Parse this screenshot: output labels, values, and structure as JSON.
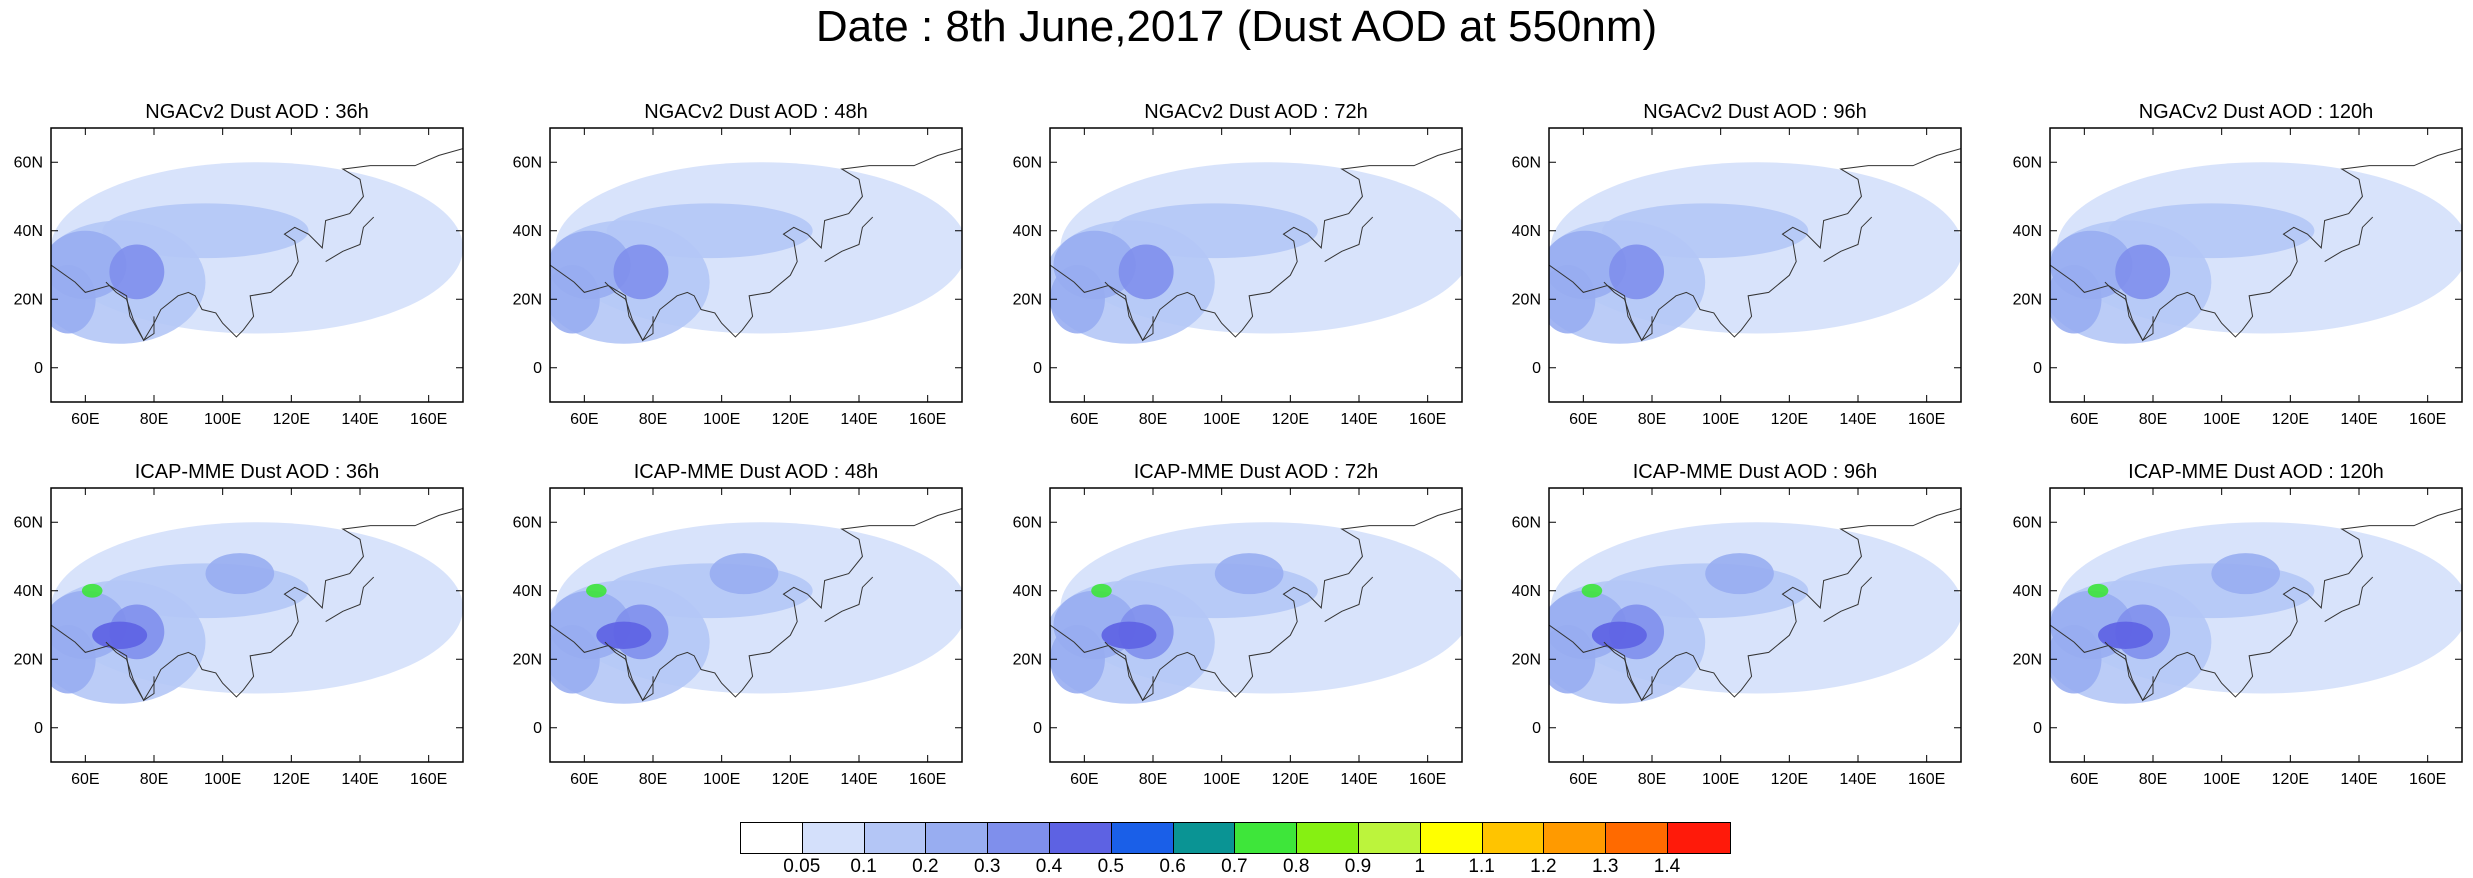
{
  "title": "Date : 8th June,2017 (Dust AOD at 550nm)",
  "rows": [
    {
      "model": "NGACv2",
      "panels": [
        {
          "title": "NGACv2 Dust AOD : 36h"
        },
        {
          "title": "NGACv2 Dust AOD : 48h"
        },
        {
          "title": "NGACv2 Dust AOD : 72h"
        },
        {
          "title": "NGACv2 Dust AOD : 96h"
        },
        {
          "title": "NGACv2 Dust AOD : 120h"
        }
      ]
    },
    {
      "model": "ICAP-MME",
      "panels": [
        {
          "title": "ICAP-MME Dust AOD : 36h"
        },
        {
          "title": "ICAP-MME Dust AOD : 48h"
        },
        {
          "title": "ICAP-MME Dust AOD : 72h"
        },
        {
          "title": "ICAP-MME Dust AOD : 96h"
        },
        {
          "title": "ICAP-MME Dust AOD : 120h"
        }
      ]
    }
  ],
  "map_extent": {
    "lon": [
      50,
      170
    ],
    "lat": [
      -10,
      70
    ]
  },
  "lon_ticks": [
    "60E",
    "80E",
    "100E",
    "120E",
    "140E",
    "160E"
  ],
  "lat_ticks": [
    "0",
    "20N",
    "40N",
    "60N"
  ],
  "colorbar": {
    "labels": [
      "0.05",
      "0.1",
      "0.2",
      "0.3",
      "0.4",
      "0.5",
      "0.6",
      "0.7",
      "0.8",
      "0.9",
      "1",
      "1.1",
      "1.2",
      "1.3",
      "1.4"
    ],
    "colors": [
      "#ffffff",
      "#d4e0fb",
      "#b4c6f6",
      "#98adf1",
      "#7f8fec",
      "#5d62e3",
      "#1a5fe8",
      "#0a9494",
      "#3ee63a",
      "#86f012",
      "#bcf43c",
      "#ffff00",
      "#ffc400",
      "#ff9a00",
      "#ff6a00",
      "#ff1a0a"
    ]
  },
  "chart_data": {
    "type": "heatmap",
    "variable": "Dust AOD at 550nm",
    "date": "8th June,2017",
    "panels": [
      {
        "model": "NGACv2",
        "lead": "36h"
      },
      {
        "model": "NGACv2",
        "lead": "48h"
      },
      {
        "model": "NGACv2",
        "lead": "72h"
      },
      {
        "model": "NGACv2",
        "lead": "96h"
      },
      {
        "model": "NGACv2",
        "lead": "120h"
      },
      {
        "model": "ICAP-MME",
        "lead": "36h"
      },
      {
        "model": "ICAP-MME",
        "lead": "48h"
      },
      {
        "model": "ICAP-MME",
        "lead": "72h"
      },
      {
        "model": "ICAP-MME",
        "lead": "96h"
      },
      {
        "model": "ICAP-MME",
        "lead": "120h"
      }
    ],
    "levels": [
      0.05,
      0.1,
      0.2,
      0.3,
      0.4,
      0.5,
      0.6,
      0.7,
      0.8,
      0.9,
      1,
      1.1,
      1.2,
      1.3,
      1.4
    ],
    "xlim": [
      50,
      170
    ],
    "ylim": [
      -10,
      70
    ]
  }
}
